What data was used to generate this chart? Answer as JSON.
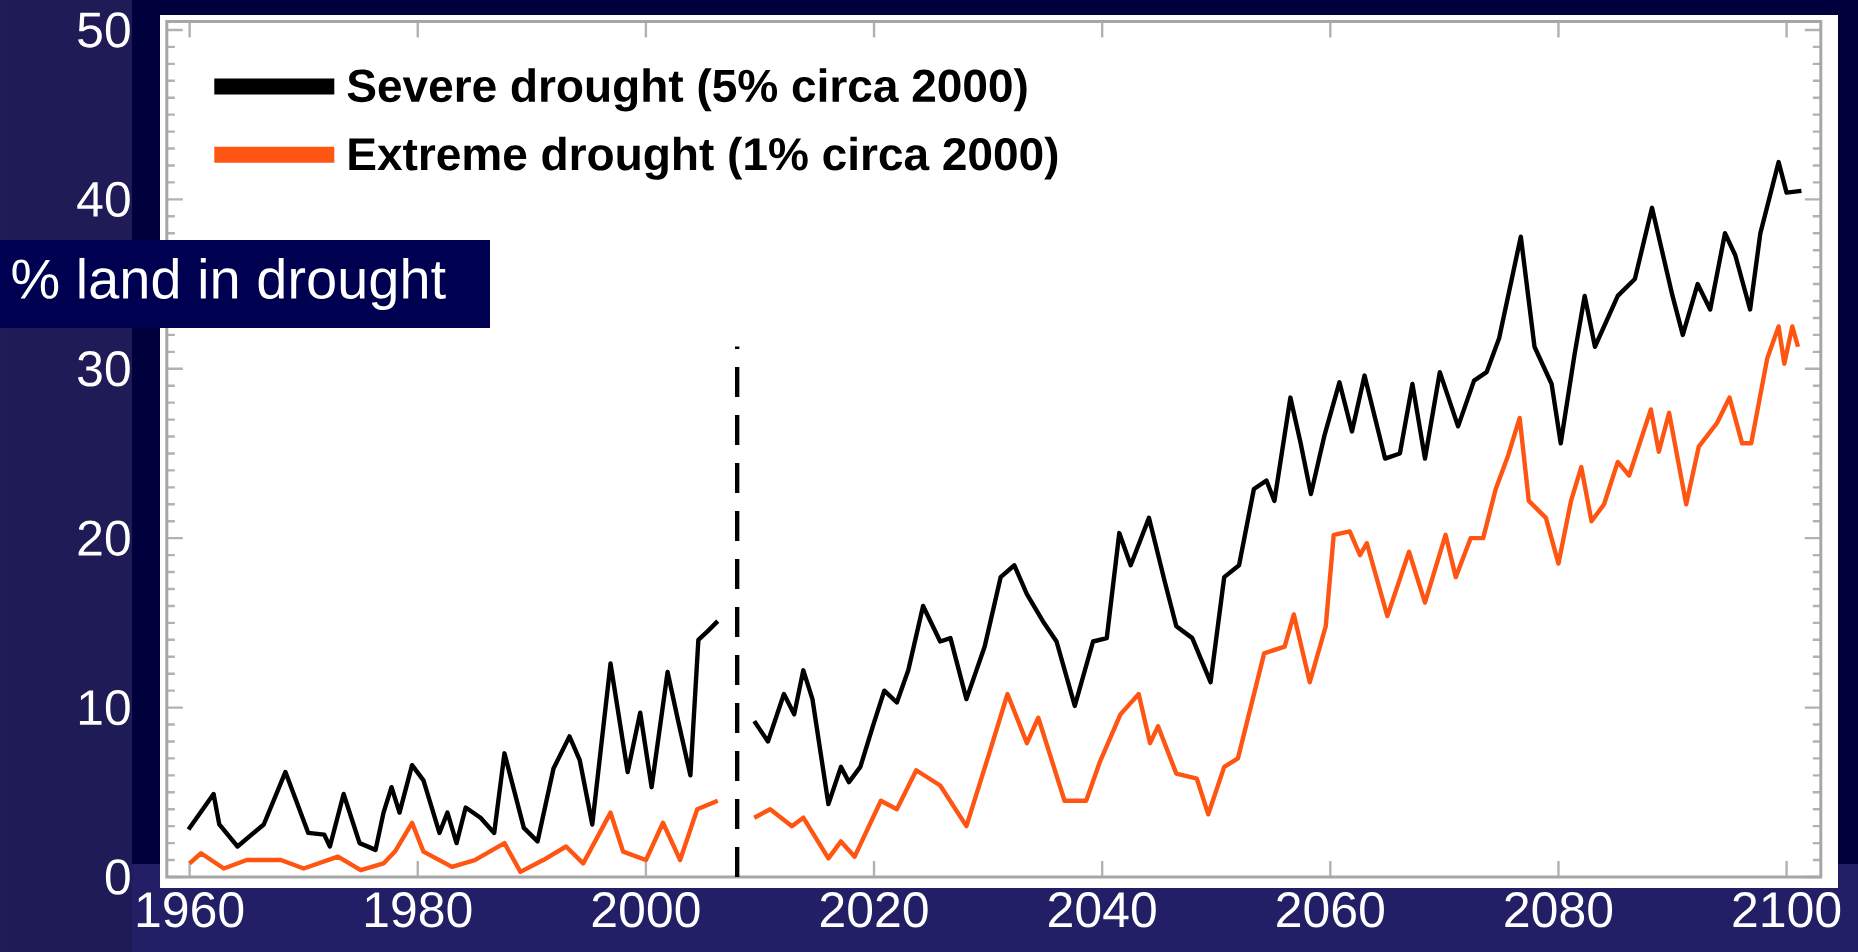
{
  "chart_data": {
    "type": "line",
    "ylabel": "% land in drought",
    "legend": "top left",
    "xlim": [
      1958,
      2103
    ],
    "ylim": [
      0,
      50.5
    ],
    "xticks": [
      1960,
      1980,
      2000,
      2020,
      2040,
      2060,
      2080,
      2100
    ],
    "yticks": [
      0,
      10,
      20,
      30,
      40,
      50
    ],
    "ref_lines": [
      {
        "axis": "x",
        "value": 2008,
        "color": "#000000",
        "line_style": "dashed"
      }
    ],
    "series": [
      {
        "name": "Severe drought   (5% circa 2000)",
        "color": "#000000",
        "x": [
          1959.9,
          1962.1,
          1962.6,
          1964.2,
          1966.5,
          1968.4,
          1970.4,
          1971.8,
          1972.3,
          1973.5,
          1974.9,
          1976.3,
          1977.0,
          1977.7,
          1978.4,
          1979.5,
          1980.5,
          1981.9,
          1982.6,
          1983.4,
          1984.2,
          1985.5,
          1986.7,
          1987.6,
          1989.3,
          1990.5,
          1991.9,
          1993.3,
          1994.2,
          1995.3,
          1996.9,
          1998.4,
          1999.5,
          2000.5,
          2001.9,
          2002.8,
          2003.9,
          2004.6,
          2005.4,
          2006.3,
          2007.5,
          2009.5,
          2010.7,
          2012.1,
          2013.0,
          2013.8,
          2014.6,
          2016.0,
          2017.1,
          2017.8,
          2018.8,
          2019.9,
          2020.9,
          2022.0,
          2023.0,
          2024.3,
          2025.8,
          2026.7,
          2028.1,
          2029.7,
          2031.1,
          2032.3,
          2033.4,
          2034.8,
          2036.0,
          2037.6,
          2039.2,
          2040.4,
          2041.5,
          2042.5,
          2044.1,
          2045.5,
          2046.5,
          2047.9,
          2049.5,
          2050.7,
          2052.0,
          2053.3,
          2054.4,
          2055.1,
          2056.5,
          2057.4,
          2058.3,
          2059.5,
          2060.8,
          2061.9,
          2063.0,
          2064.8,
          2066.1,
          2067.2,
          2068.3,
          2069.6,
          2071.2,
          2072.6,
          2073.7,
          2074.8,
          2076.7,
          2077.9,
          2079.4,
          2080.2,
          2081.4,
          2082.3,
          2083.2,
          2085.2,
          2086.7,
          2088.2,
          2090.0,
          2090.9,
          2092.2,
          2093.3,
          2094.6,
          2095.5,
          2096.8,
          2097.7,
          2099.3,
          2100.0,
          2101.3
        ],
        "values": [
          2.8,
          4.9,
          3.1,
          1.8,
          3.1,
          6.2,
          2.6,
          2.5,
          1.8,
          4.9,
          2.0,
          1.6,
          3.8,
          5.3,
          3.8,
          6.6,
          5.7,
          2.6,
          3.8,
          2.0,
          4.1,
          3.5,
          2.6,
          7.3,
          2.9,
          2.1,
          6.4,
          8.3,
          6.9,
          3.1,
          12.6,
          6.2,
          9.7,
          5.3,
          12.1,
          9.3,
          6.0,
          14.0,
          14.5,
          15.1,
          null,
          9.2,
          8.0,
          10.8,
          9.6,
          12.2,
          10.5,
          4.3,
          6.5,
          5.6,
          6.5,
          8.9,
          11.0,
          10.3,
          12.2,
          16.0,
          13.9,
          14.1,
          10.5,
          13.6,
          17.7,
          18.4,
          16.7,
          15.1,
          13.9,
          10.1,
          13.9,
          14.1,
          20.3,
          18.4,
          21.2,
          17.4,
          14.8,
          14.1,
          11.5,
          17.7,
          18.4,
          22.9,
          23.4,
          22.2,
          28.3,
          25.6,
          22.6,
          26.1,
          29.2,
          26.3,
          29.6,
          24.7,
          25.0,
          29.1,
          24.7,
          29.8,
          26.6,
          29.3,
          29.8,
          31.8,
          37.8,
          31.3,
          29.1,
          25.6,
          30.8,
          34.3,
          31.3,
          34.3,
          35.3,
          39.5,
          34.3,
          32.0,
          35.0,
          33.5,
          38.0,
          36.7,
          33.5,
          38.0,
          42.2,
          40.4,
          40.5
        ]
      },
      {
        "name": "Extreme drought (1% circa 2000)",
        "color": "#ff5512",
        "x": [
          1960.0,
          1961.0,
          1963.0,
          1965.0,
          1968.0,
          1970.0,
          1973.0,
          1975.0,
          1977.0,
          1978.0,
          1979.5,
          1980.5,
          1983.0,
          1985.0,
          1987.6,
          1989.0,
          1991.0,
          1993.0,
          1994.5,
          1996.9,
          1998.0,
          2000.0,
          2001.5,
          2003.0,
          2004.5,
          2006.3,
          2007.5,
          2009.5,
          2010.9,
          2012.8,
          2013.8,
          2016.0,
          2017.1,
          2018.3,
          2020.6,
          2022.0,
          2023.7,
          2025.8,
          2028.1,
          2030.1,
          2031.7,
          2033.4,
          2034.4,
          2036.7,
          2038.6,
          2039.8,
          2041.6,
          2043.2,
          2044.2,
          2044.9,
          2046.5,
          2048.3,
          2049.3,
          2050.7,
          2051.9,
          2054.2,
          2056.0,
          2056.8,
          2058.2,
          2059.6,
          2060.3,
          2061.7,
          2062.6,
          2063.2,
          2065.0,
          2066.9,
          2068.3,
          2070.1,
          2071.0,
          2072.3,
          2073.4,
          2074.5,
          2075.6,
          2076.6,
          2077.4,
          2078.9,
          2080.0,
          2081.1,
          2082.0,
          2082.9,
          2084.0,
          2085.2,
          2086.2,
          2088.1,
          2088.8,
          2089.7,
          2091.2,
          2092.3,
          2093.9,
          2095.0,
          2096.1,
          2096.9,
          2098.3,
          2099.3,
          2099.8,
          2100.5,
          2101.0
        ],
        "values": [
          0.8,
          1.4,
          0.5,
          1.0,
          1.0,
          0.5,
          1.2,
          0.4,
          0.8,
          1.5,
          3.2,
          1.5,
          0.6,
          1.0,
          2.0,
          0.3,
          1.0,
          1.8,
          0.8,
          3.8,
          1.5,
          1.0,
          3.2,
          1.0,
          4.0,
          4.5,
          null,
          3.5,
          4.0,
          3.0,
          3.5,
          1.1,
          2.1,
          1.2,
          4.5,
          4.0,
          6.3,
          5.4,
          3.0,
          7.3,
          10.8,
          7.9,
          9.4,
          4.5,
          4.5,
          6.8,
          9.6,
          10.8,
          7.9,
          8.9,
          6.1,
          5.8,
          3.7,
          6.5,
          7.0,
          13.2,
          13.6,
          15.5,
          11.5,
          14.8,
          20.2,
          20.4,
          19.0,
          19.7,
          15.4,
          19.2,
          16.2,
          20.2,
          17.7,
          20.0,
          20.0,
          22.9,
          24.9,
          27.1,
          22.2,
          21.2,
          18.5,
          22.2,
          24.2,
          21.0,
          22.0,
          24.5,
          23.7,
          27.6,
          25.1,
          27.4,
          22.0,
          25.4,
          26.8,
          28.3,
          25.6,
          25.6,
          30.6,
          32.5,
          30.3,
          32.5,
          31.3
        ]
      }
    ]
  }
}
